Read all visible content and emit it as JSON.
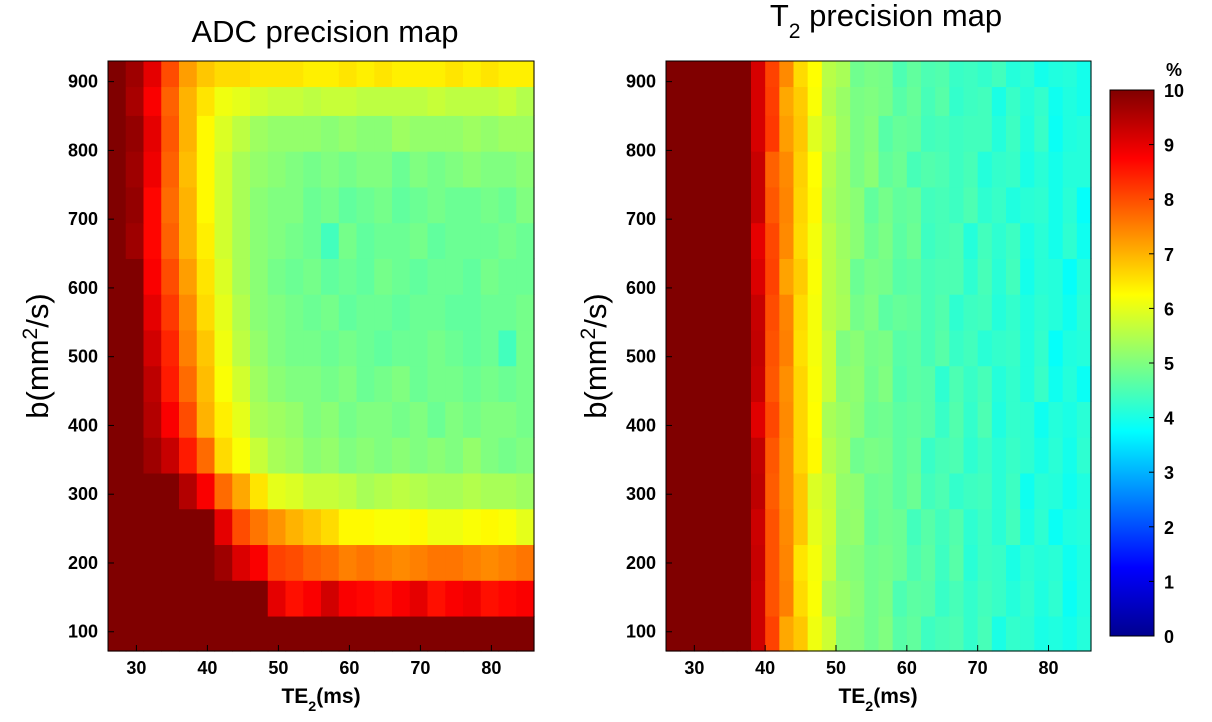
{
  "chart_data": [
    {
      "type": "heatmap",
      "title": "ADC precision map",
      "xlabel": {
        "main": "TE",
        "sub": "2",
        "unit": "(ms)"
      },
      "ylabel": {
        "main": "b(mm",
        "sup": "2",
        "unit": "/s)"
      },
      "xlim": [
        26,
        86
      ],
      "ylim": [
        72,
        930
      ],
      "xticks": [
        30,
        40,
        50,
        60,
        70,
        80
      ],
      "yticks": [
        100,
        200,
        300,
        400,
        500,
        600,
        700,
        800,
        900
      ],
      "x_centers": [
        27.25,
        29.75,
        32.25,
        34.75,
        37.25,
        39.75,
        42.25,
        44.75,
        47.25,
        49.75,
        52.25,
        54.75,
        57.25,
        59.75,
        62.25,
        64.75,
        67.25,
        69.75,
        72.25,
        74.75,
        77.25,
        79.75,
        82.25,
        84.75
      ],
      "y_centers": [
        97,
        149,
        201,
        253,
        305,
        357,
        409,
        461,
        513,
        565,
        617,
        669,
        721,
        773,
        825,
        877,
        909
      ],
      "values": [
        [
          10,
          10,
          10,
          10,
          10,
          10,
          10,
          10,
          10,
          10,
          10,
          10,
          10,
          10,
          10,
          10,
          10,
          10,
          10,
          10,
          10,
          10,
          10,
          10
        ],
        [
          10,
          10,
          10,
          10,
          10,
          10,
          10,
          10,
          10,
          9,
          8.6,
          8.8,
          9.2,
          8.8,
          8.7,
          8.6,
          8.8,
          9,
          8.6,
          8.8,
          8.9,
          8.6,
          8.7,
          8.8
        ],
        [
          10,
          10,
          10,
          10,
          10,
          10,
          9.7,
          9.1,
          8.8,
          8.1,
          8,
          7.8,
          7.7,
          7.5,
          7.6,
          7.5,
          7.4,
          7.5,
          7.6,
          7.6,
          7.5,
          7.4,
          7.5,
          7.6
        ],
        [
          10,
          10,
          10,
          10,
          10,
          10,
          9,
          8,
          7.6,
          7.3,
          7,
          6.8,
          6.6,
          6.3,
          6.3,
          6.2,
          6.2,
          6.3,
          6.1,
          6.1,
          6.2,
          6.3,
          6.2,
          6
        ],
        [
          10,
          10,
          10,
          10,
          9.5,
          8.8,
          7.7,
          7.1,
          6.5,
          6,
          5.9,
          5.7,
          5.7,
          5.6,
          5.4,
          5.5,
          5.6,
          5.5,
          5.4,
          5.4,
          5.5,
          5.4,
          5.4,
          5.3
        ],
        [
          10,
          10,
          9.7,
          9.3,
          8.5,
          7.7,
          6.6,
          6.2,
          5.7,
          5.4,
          5.3,
          5.1,
          5.2,
          5.0,
          5.1,
          5.0,
          5.1,
          5.0,
          5.1,
          5.0,
          5.2,
          5.0,
          4.9,
          5.0
        ],
        [
          10,
          10,
          9.5,
          8.8,
          8,
          7,
          6.4,
          6,
          5.4,
          5.3,
          5.2,
          5,
          5.1,
          4.9,
          5,
          5,
          4.9,
          5,
          4.8,
          5,
          4.9,
          5,
          5,
          4.9
        ],
        [
          10,
          10,
          9.4,
          8.5,
          7.7,
          6.9,
          6.2,
          5.8,
          5.3,
          5.1,
          5,
          5,
          4.9,
          5,
          4.8,
          4.9,
          5,
          4.8,
          4.9,
          4.9,
          4.8,
          4.9,
          4.8,
          4.9
        ],
        [
          10,
          10,
          9.2,
          8.4,
          7.5,
          6.8,
          6.1,
          5.6,
          5.2,
          5,
          4.9,
          4.9,
          4.8,
          4.9,
          4.8,
          4.7,
          4.8,
          4.8,
          4.9,
          4.8,
          4.7,
          4.8,
          4.4,
          4.9
        ],
        [
          10,
          10,
          9,
          8.2,
          7.4,
          6.6,
          6,
          5.5,
          5.1,
          5,
          4.9,
          4.8,
          4.9,
          4.7,
          4.8,
          4.8,
          4.7,
          4.8,
          4.8,
          4.7,
          4.7,
          4.8,
          4.8,
          4.9
        ],
        [
          10,
          10,
          8.8,
          8,
          7.2,
          6.5,
          5.9,
          5.4,
          5.1,
          4.9,
          4.8,
          4.9,
          4.7,
          4.8,
          4.7,
          4.9,
          4.8,
          4.7,
          4.8,
          4.8,
          4.7,
          4.9,
          4.8,
          4.8
        ],
        [
          10,
          9.7,
          8.7,
          7.8,
          7,
          6.4,
          5.8,
          5.4,
          5.1,
          5,
          4.9,
          4.8,
          4.4,
          4.9,
          4.7,
          4.8,
          4.8,
          4.9,
          4.7,
          4.8,
          4.8,
          4.8,
          4.9,
          4.8
        ],
        [
          10,
          9.8,
          8.7,
          7.7,
          7,
          6.3,
          5.8,
          5.4,
          5.1,
          5,
          5,
          4.8,
          4.9,
          4.7,
          4.8,
          4.9,
          4.7,
          4.8,
          4.9,
          4.8,
          4.8,
          4.9,
          4.8,
          5
        ],
        [
          10,
          9.7,
          8.9,
          7.8,
          6.9,
          6.3,
          5.8,
          5.4,
          5.2,
          5.1,
          5,
          4.9,
          5,
          4.9,
          5,
          5,
          4.8,
          5,
          4.9,
          5,
          5.1,
          5,
          5,
          5.1
        ],
        [
          10,
          9.8,
          9,
          7.9,
          7,
          6.3,
          5.9,
          5.6,
          5.3,
          5.2,
          5.2,
          5.2,
          5.1,
          5.2,
          5.1,
          5.1,
          5.3,
          5.2,
          5.2,
          5.2,
          5.3,
          5.2,
          5.3,
          5.3
        ],
        [
          10,
          9.6,
          8.8,
          7.8,
          7.0,
          6.5,
          6.1,
          6.0,
          5.8,
          5.7,
          5.7,
          5.6,
          5.7,
          5.7,
          5.6,
          5.6,
          5.6,
          5.6,
          5.7,
          5.6,
          5.6,
          5.6,
          5.7,
          5.5
        ],
        [
          10,
          9.7,
          9,
          8,
          7.2,
          6.8,
          6.6,
          6.6,
          6.5,
          6.5,
          6.5,
          6.4,
          6.4,
          6.5,
          6.4,
          6.5,
          6.4,
          6.4,
          6.4,
          6.5,
          6.4,
          6.5,
          6.4,
          6.4
        ]
      ]
    },
    {
      "type": "heatmap",
      "title": "T",
      "title_sub": "2",
      "title_rest": " precision map",
      "xlabel": {
        "main": "TE",
        "sub": "2",
        "unit": "(ms)"
      },
      "ylabel": {
        "main": "b(mm",
        "sup": "2",
        "unit": "/s)"
      },
      "xlim": [
        26,
        86
      ],
      "ylim": [
        72,
        930
      ],
      "xticks": [
        30,
        40,
        50,
        60,
        70,
        80
      ],
      "yticks": [
        100,
        200,
        300,
        400,
        500,
        600,
        700,
        800,
        900
      ],
      "x_centers": [
        27,
        29,
        31,
        33,
        35,
        37,
        39,
        41,
        43,
        45,
        47,
        49,
        51,
        53,
        55,
        57,
        59,
        61,
        63,
        65,
        67,
        69,
        71,
        73,
        75,
        77,
        79,
        81,
        83,
        85
      ],
      "y_centers": [
        97,
        149,
        201,
        253,
        305,
        357,
        409,
        461,
        513,
        565,
        617,
        669,
        721,
        773,
        825,
        877,
        909
      ],
      "base_profile": [
        10,
        10,
        10,
        10,
        10,
        10.5,
        9.2,
        8.0,
        7.3,
        6.7,
        6.1,
        5.6,
        5.2,
        5.0,
        4.9,
        4.8,
        4.7,
        4.6,
        4.5,
        4.4,
        4.4,
        4.3,
        4.3,
        4.2,
        4.2,
        4.1,
        4.1,
        4.0,
        4.0,
        4.0
      ],
      "noise": [
        0.1,
        -0.1,
        0.15,
        -0.05,
        0.2,
        -0.15,
        0.05,
        0.1,
        -0.2,
        0.1,
        0,
        0.15,
        -0.1,
        0.05,
        -0.05,
        0.2,
        -0.1,
        0.1,
        -0.15,
        0.05,
        0.1,
        -0.05,
        0.15,
        -0.2,
        0.05,
        0.1,
        -0.1,
        0.05,
        -0.05,
        0.1
      ]
    }
  ],
  "colorbar": {
    "label": "%",
    "min": 0,
    "max": 10,
    "ticks": [
      0,
      1,
      2,
      3,
      4,
      5,
      6,
      7,
      8,
      9,
      10
    ],
    "colormap": "jet"
  }
}
